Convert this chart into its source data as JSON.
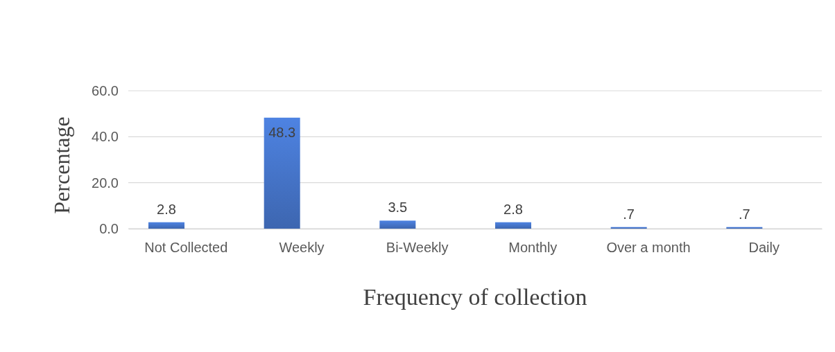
{
  "chart_data": {
    "type": "bar",
    "xlabel": "Frequency of collection",
    "ylabel": "Percentage",
    "categories": [
      "Not Collected",
      "Weekly",
      "Bi-Weekly",
      "Monthly",
      "Over a month",
      "Daily"
    ],
    "values": [
      2.8,
      48.3,
      3.5,
      2.8,
      0.7,
      0.7
    ],
    "value_labels": [
      "2.8",
      "48.3",
      "3.5",
      "2.8",
      ".7",
      ".7"
    ],
    "color": "#4472c4",
    "ylim": [
      0,
      60
    ],
    "yticks": [
      {
        "value": 0,
        "label": "0.0"
      },
      {
        "value": 20,
        "label": "20.0"
      },
      {
        "value": 40,
        "label": "40.0"
      },
      {
        "value": 60,
        "label": "60.0"
      }
    ],
    "grid": "y"
  }
}
